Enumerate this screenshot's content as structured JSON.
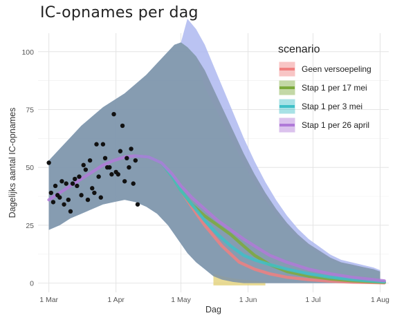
{
  "chart_data": {
    "type": "line",
    "title": "IC-opnames per dag",
    "xlabel": "Dag",
    "ylabel": "Dagelijks aantal IC-opnames",
    "x_ticks": [
      {
        "label": "1 Mar",
        "day": 0
      },
      {
        "label": "1 Apr",
        "day": 31
      },
      {
        "label": "1 May",
        "day": 61
      },
      {
        "label": "1 Jun",
        "day": 92
      },
      {
        "label": "1 Jul",
        "day": 122
      },
      {
        "label": "1 Aug",
        "day": 153
      }
    ],
    "y_ticks": [
      0,
      25,
      50,
      75,
      100
    ],
    "xlim": [
      -5,
      157
    ],
    "ylim": [
      -4,
      108
    ],
    "grid": true,
    "legend": {
      "title": "scenario",
      "position": "top-right"
    },
    "series": [
      {
        "name": "Geen versoepeling",
        "color": "#f08080",
        "x": [
          40,
          46,
          52,
          57,
          61,
          66,
          72,
          80,
          88,
          95,
          102,
          110,
          120,
          130,
          140,
          150,
          155
        ],
        "y": [
          55,
          54.5,
          52,
          46,
          40,
          33,
          25,
          16,
          9,
          6,
          4,
          2.5,
          1.5,
          0.8,
          0.4,
          0.2,
          0.1
        ],
        "band_upper": [
          null
        ],
        "band_lower": [
          null
        ]
      },
      {
        "name": "Stap 1 per 17 mei",
        "color": "#7caa3c",
        "x": [
          40,
          46,
          52,
          57,
          61,
          66,
          72,
          78,
          84,
          90,
          95,
          102,
          110,
          120,
          130,
          140,
          150,
          155
        ],
        "y": [
          55,
          54.5,
          52,
          46,
          40,
          34,
          29,
          25,
          21,
          16,
          12,
          8,
          5,
          3,
          1.8,
          1,
          0.5,
          0.3
        ]
      },
      {
        "name": "Stap 1 per 3 mei",
        "color": "#40c0c8",
        "x": [
          40,
          46,
          52,
          57,
          61,
          66,
          72,
          78,
          84,
          90,
          95,
          102,
          110,
          120,
          130,
          140,
          150,
          155
        ],
        "y": [
          55,
          54.5,
          52,
          46,
          40,
          34,
          27,
          21,
          16,
          12,
          10,
          8,
          6,
          4,
          2.5,
          1.5,
          0.8,
          0.5
        ]
      },
      {
        "name": "Stap 1 per 26 april",
        "color": "#b07ad8",
        "x": [
          0,
          5,
          10,
          15,
          20,
          25,
          30,
          35,
          40,
          46,
          52,
          57,
          61,
          66,
          72,
          78,
          84,
          90,
          95,
          102,
          110,
          120,
          130,
          140,
          150,
          155
        ],
        "y": [
          36,
          39,
          42,
          45,
          48,
          51,
          53,
          54.5,
          55,
          54.5,
          52,
          47,
          42,
          37,
          32,
          27,
          23,
          19,
          16,
          12,
          9,
          6,
          4,
          2.5,
          1.5,
          1
        ]
      }
    ],
    "band": {
      "x": [
        0,
        5,
        10,
        15,
        20,
        25,
        30,
        35,
        40,
        45,
        50,
        55,
        58,
        61,
        64,
        68,
        72,
        76,
        80,
        85,
        90,
        95,
        100,
        105,
        110,
        115,
        120,
        125,
        130,
        135,
        140,
        145,
        150,
        153
      ],
      "upper": [
        53,
        58,
        63,
        68,
        72,
        76,
        79,
        82,
        86,
        90,
        95,
        100,
        103,
        104,
        102,
        98,
        92,
        84,
        76,
        66,
        56,
        47,
        39,
        32,
        26,
        21,
        17,
        14,
        11,
        9,
        8,
        7,
        6,
        5
      ],
      "lower": [
        23,
        25,
        28,
        30,
        32,
        34,
        35,
        36,
        35,
        33,
        30,
        25,
        21,
        17,
        13,
        9,
        6,
        3,
        1.5,
        0.5,
        0,
        0,
        0,
        0,
        0,
        0,
        0,
        0,
        0,
        0,
        0,
        0,
        0,
        0
      ],
      "color": "#7f93a8"
    },
    "observed": {
      "x": [
        0,
        1,
        2,
        3,
        4,
        5,
        6,
        7,
        8,
        9,
        10,
        11,
        12,
        13,
        14,
        15,
        16,
        17,
        18,
        19,
        20,
        21,
        22,
        23,
        24,
        25,
        26,
        27,
        28,
        29,
        30,
        31,
        32,
        33,
        34,
        35,
        36,
        37,
        38,
        39,
        40,
        41
      ],
      "y": [
        52,
        39,
        35,
        42,
        38,
        37,
        44,
        34,
        43,
        36,
        31,
        43,
        45,
        42,
        46,
        38,
        51,
        49,
        36,
        53,
        41,
        39,
        60,
        46,
        37,
        60,
        54,
        50,
        50,
        47,
        73,
        48,
        47,
        57,
        68,
        44,
        54,
        50,
        58,
        43,
        53,
        34
      ]
    }
  }
}
